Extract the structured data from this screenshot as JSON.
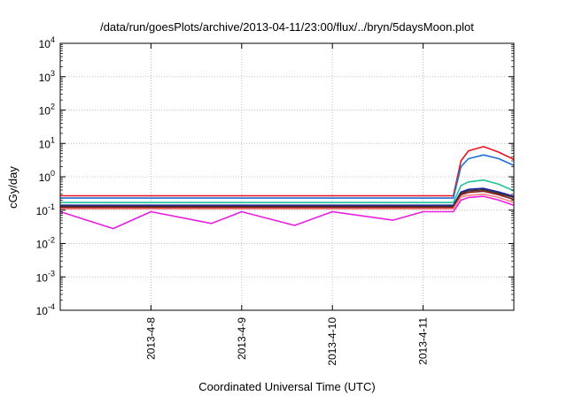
{
  "chart_data": {
    "type": "line",
    "title": "/data/run/goesPlots/archive/2013-04-11/23:00/flux/../bryn/5daysMoon.plot",
    "xlabel": "Coordinated Universal Time (UTC)",
    "ylabel": "cGy/day",
    "y_scale": "log",
    "ylim": [
      0.0001,
      10000
    ],
    "y_ticks": [
      {
        "value": 0.0001,
        "base": "10",
        "exp": "-4"
      },
      {
        "value": 0.001,
        "base": "10",
        "exp": "-3"
      },
      {
        "value": 0.01,
        "base": "10",
        "exp": "-2"
      },
      {
        "value": 0.1,
        "base": "10",
        "exp": "-1"
      },
      {
        "value": 1,
        "base": "10",
        "exp": "0"
      },
      {
        "value": 10,
        "base": "10",
        "exp": "1"
      },
      {
        "value": 100,
        "base": "10",
        "exp": "2"
      },
      {
        "value": 1000,
        "base": "10",
        "exp": "3"
      },
      {
        "value": 10000,
        "base": "10",
        "exp": "4"
      }
    ],
    "xlim": [
      "2013-04-07 00:00",
      "2013-04-12 00:00"
    ],
    "x_ticks": [
      {
        "label": "2013-4-8",
        "value": "2013-04-08"
      },
      {
        "label": "2013-4-9",
        "value": "2013-04-09"
      },
      {
        "label": "2013-4-10",
        "value": "2013-04-10"
      },
      {
        "label": "2013-4-11",
        "value": "2013-04-11"
      }
    ],
    "grid": true,
    "series": [
      {
        "color": "#e8141e",
        "x": [
          "2013-04-07 00:00",
          "2013-04-08 00:00",
          "2013-04-09 00:00",
          "2013-04-10 00:00",
          "2013-04-11 00:00",
          "2013-04-11 08:00",
          "2013-04-11 10:00",
          "2013-04-11 12:00",
          "2013-04-11 16:00",
          "2013-04-11 20:00",
          "2013-04-12 00:00"
        ],
        "values": [
          0.27,
          0.27,
          0.27,
          0.27,
          0.27,
          0.27,
          3.0,
          6.0,
          8.0,
          5.5,
          3.3
        ]
      },
      {
        "color": "#1f6fd8",
        "x": [
          "2013-04-07 00:00",
          "2013-04-08 00:00",
          "2013-04-09 00:00",
          "2013-04-10 00:00",
          "2013-04-11 00:00",
          "2013-04-11 08:00",
          "2013-04-11 10:00",
          "2013-04-11 12:00",
          "2013-04-11 16:00",
          "2013-04-11 20:00",
          "2013-04-12 00:00"
        ],
        "values": [
          0.23,
          0.23,
          0.23,
          0.23,
          0.23,
          0.23,
          2.0,
          3.5,
          4.5,
          3.5,
          2.2
        ]
      },
      {
        "color": "#1ec49a",
        "x": [
          "2013-04-07 00:00",
          "2013-04-08 00:00",
          "2013-04-09 00:00",
          "2013-04-10 00:00",
          "2013-04-11 00:00",
          "2013-04-11 08:00",
          "2013-04-11 10:00",
          "2013-04-11 12:00",
          "2013-04-11 16:00",
          "2013-04-11 20:00",
          "2013-04-12 00:00"
        ],
        "values": [
          0.17,
          0.17,
          0.17,
          0.17,
          0.17,
          0.17,
          0.55,
          0.7,
          0.8,
          0.6,
          0.38
        ]
      },
      {
        "color": "#2020a0",
        "x": [
          "2013-04-07 00:00",
          "2013-04-08 00:00",
          "2013-04-09 00:00",
          "2013-04-10 00:00",
          "2013-04-11 00:00",
          "2013-04-11 08:00",
          "2013-04-11 10:00",
          "2013-04-11 12:00",
          "2013-04-11 16:00",
          "2013-04-11 20:00",
          "2013-04-12 00:00"
        ],
        "values": [
          0.14,
          0.14,
          0.14,
          0.14,
          0.14,
          0.14,
          0.35,
          0.42,
          0.45,
          0.35,
          0.26
        ]
      },
      {
        "color": "#333333",
        "x": [
          "2013-04-07 00:00",
          "2013-04-08 00:00",
          "2013-04-09 00:00",
          "2013-04-10 00:00",
          "2013-04-11 00:00",
          "2013-04-11 08:00",
          "2013-04-11 10:00",
          "2013-04-11 12:00",
          "2013-04-11 16:00",
          "2013-04-11 20:00",
          "2013-04-12 00:00"
        ],
        "values": [
          0.13,
          0.13,
          0.13,
          0.13,
          0.13,
          0.13,
          0.32,
          0.38,
          0.41,
          0.32,
          0.24
        ]
      },
      {
        "color": "#8a1c1c",
        "x": [
          "2013-04-07 00:00",
          "2013-04-08 00:00",
          "2013-04-09 00:00",
          "2013-04-10 00:00",
          "2013-04-11 00:00",
          "2013-04-11 08:00",
          "2013-04-11 10:00",
          "2013-04-11 12:00",
          "2013-04-11 16:00",
          "2013-04-11 20:00",
          "2013-04-12 00:00"
        ],
        "values": [
          0.12,
          0.12,
          0.12,
          0.12,
          0.12,
          0.12,
          0.29,
          0.34,
          0.37,
          0.29,
          0.21
        ]
      },
      {
        "color": "#ff7f7f",
        "x": [
          "2013-04-07 00:00",
          "2013-04-08 00:00",
          "2013-04-09 00:00",
          "2013-04-10 00:00",
          "2013-04-11 00:00",
          "2013-04-11 08:00",
          "2013-04-11 10:00",
          "2013-04-11 12:00",
          "2013-04-11 16:00",
          "2013-04-11 20:00",
          "2013-04-12 00:00"
        ],
        "values": [
          0.11,
          0.11,
          0.11,
          0.11,
          0.11,
          0.11,
          0.25,
          0.28,
          0.3,
          0.24,
          0.17
        ]
      },
      {
        "color": "#e81ee0",
        "x": [
          "2013-04-07 00:00",
          "2013-04-07 14:00",
          "2013-04-08 00:00",
          "2013-04-08 16:00",
          "2013-04-09 00:00",
          "2013-04-09 14:00",
          "2013-04-10 00:00",
          "2013-04-10 16:00",
          "2013-04-11 00:00",
          "2013-04-11 08:00",
          "2013-04-11 10:00",
          "2013-04-11 12:00",
          "2013-04-11 16:00",
          "2013-04-11 20:00",
          "2013-04-12 00:00"
        ],
        "values": [
          0.09,
          0.028,
          0.09,
          0.04,
          0.09,
          0.035,
          0.09,
          0.05,
          0.09,
          0.09,
          0.2,
          0.24,
          0.26,
          0.2,
          0.14
        ]
      }
    ]
  }
}
